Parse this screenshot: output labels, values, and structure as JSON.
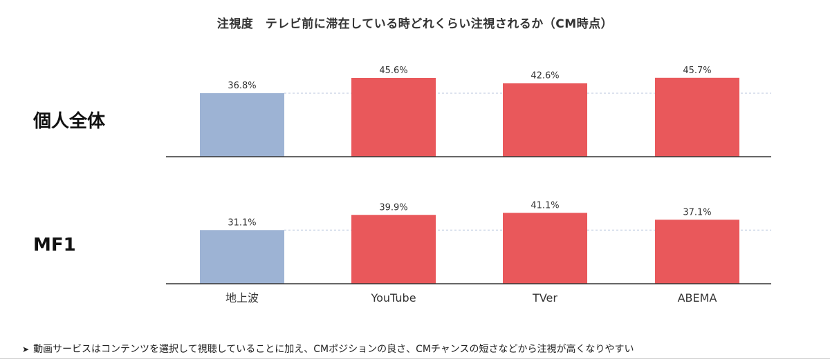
{
  "title": "注視度　テレビ前に滞在している時どれくらい注視されるか（CM時点）",
  "footnote": {
    "marker": "➤",
    "text": "動画サービスはコンテンツを選択して視聴していることに加え、CMポジションの良さ、CMチャンスの短さなどから注視が高くなりやすい"
  },
  "chart_data": {
    "type": "bar",
    "categories": [
      "地上波",
      "YouTube",
      "TVer",
      "ABEMA"
    ],
    "groups": [
      {
        "label": "個人全体",
        "values": [
          36.8,
          45.6,
          42.6,
          45.7
        ],
        "labels": [
          "36.8%",
          "45.6%",
          "42.6%",
          "45.7%"
        ]
      },
      {
        "label": "MF1",
        "values": [
          31.1,
          39.9,
          41.1,
          37.1
        ],
        "labels": [
          "31.1%",
          "39.9%",
          "41.1%",
          "37.1%"
        ]
      }
    ],
    "colors": {
      "地上波": "#9db3d4",
      "others": "#e9585b"
    },
    "reference_line": "dashed at 地上波 value",
    "grid": false
  }
}
